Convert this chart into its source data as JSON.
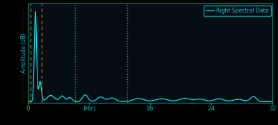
{
  "bg_color": "#000000",
  "plot_bg_color": "#040d14",
  "line_color": "#00e8e8",
  "line_width": 0.9,
  "ylabel": "Amplitude (dB)",
  "ylabel_color": "#00bbbb",
  "tick_color": "#00bbbb",
  "xlim": [
    0,
    32
  ],
  "ylim": [
    0,
    1.0
  ],
  "xticks": [
    0,
    8,
    16,
    24,
    32
  ],
  "xticklabels": [
    "0",
    "(Hz)",
    "16",
    "24",
    "32"
  ],
  "legend_label": "Right Spectral Data",
  "legend_color": "#00cccc",
  "vline1_x": 0.4,
  "vline2_x": 1.8,
  "vline3_x": 6.2,
  "vline4_x": 13.0,
  "vline_orange_color": "#b87800",
  "vline_green_color": "#00bb00"
}
